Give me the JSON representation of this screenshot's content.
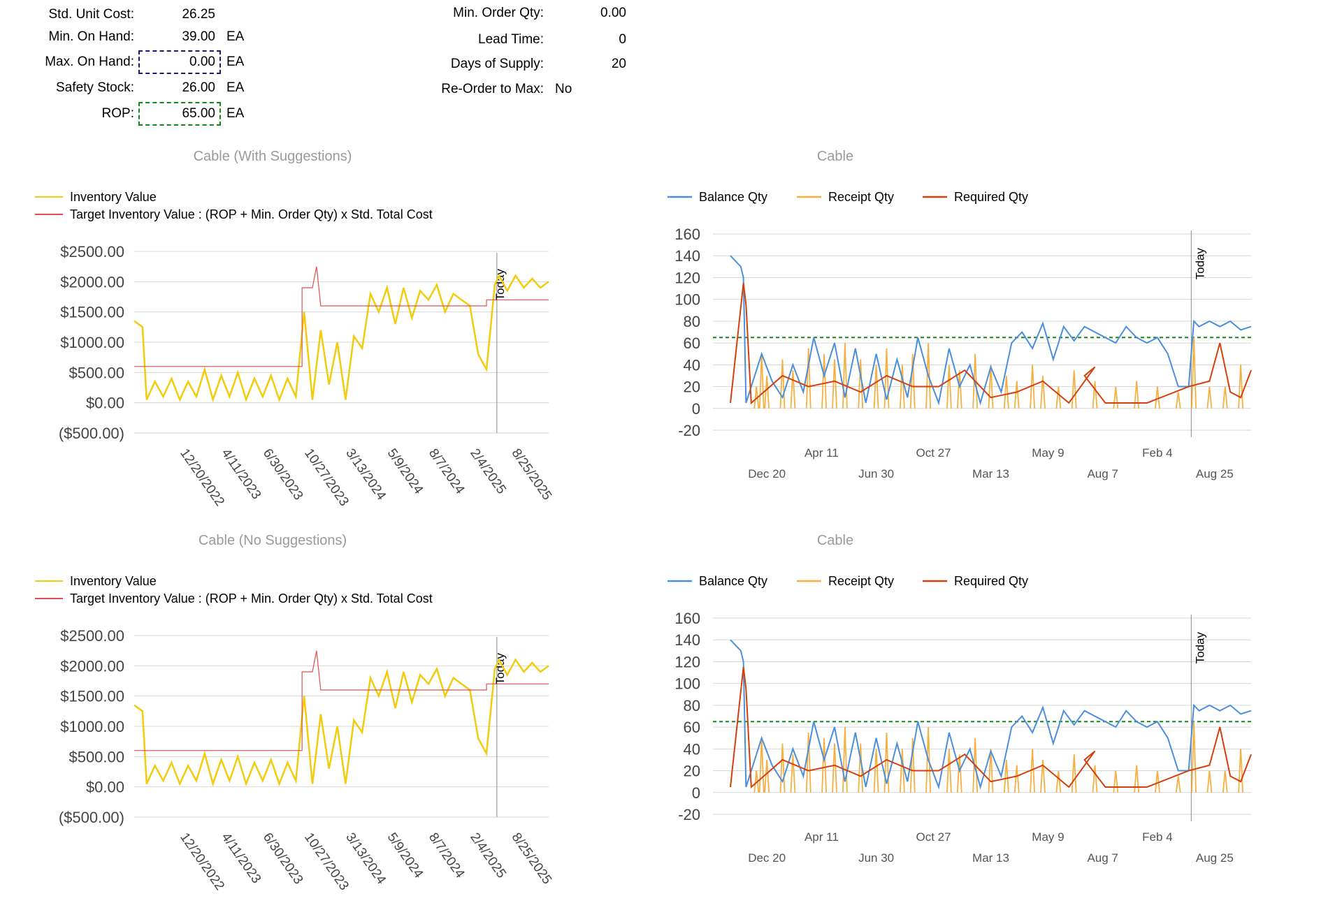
{
  "header": {
    "left": [
      {
        "label": "Std. Unit Cost:",
        "value": "26.25",
        "unit": ""
      },
      {
        "label": "Min. On Hand:",
        "value": "39.00",
        "unit": "EA"
      },
      {
        "label": "Max. On Hand:",
        "value": "0.00",
        "unit": "EA"
      },
      {
        "label": "Safety Stock:",
        "value": "26.00",
        "unit": "EA"
      },
      {
        "label": "ROP:",
        "value": "65.00",
        "unit": "EA"
      }
    ],
    "right": [
      {
        "label": "Min. Order Qty:",
        "value": "0.00"
      },
      {
        "label": "Lead Time:",
        "value": "0"
      },
      {
        "label": "Days of Supply:",
        "value": "20"
      },
      {
        "label": "Re-Order to Max:",
        "value": "No"
      }
    ],
    "colors": {
      "max_box": "#1a1a6e",
      "rop_box": "#138a13"
    }
  },
  "chart_data": [
    {
      "type": "line",
      "title": "Cable (With Suggestions)",
      "title_display": "Cable (With Suggestions)",
      "legend_placement": "top-left",
      "ylim": [
        -500,
        2500
      ],
      "y_ticks": [
        "$2500.00",
        "$2000.00",
        "$1500.00",
        "$1000.00",
        "$500.00",
        "$0.00",
        "($500.00)"
      ],
      "y_tick_values": [
        2500,
        2000,
        1500,
        1000,
        500,
        0,
        -500
      ],
      "x_tick_labels": [
        "12/20/2022",
        "4/11/2023",
        "6/30/2023",
        "10/27/2023",
        "3/13/2024",
        "5/9/2024",
        "8/7/2024",
        "2/4/2025",
        "8/25/2025"
      ],
      "x_tick_positions": [
        0.11,
        0.21,
        0.31,
        0.41,
        0.51,
        0.61,
        0.71,
        0.81,
        0.91
      ],
      "today_label": "Today",
      "today_position": 0.875,
      "series": [
        {
          "name": "Inventory Value",
          "color": "#f2cc0c",
          "x": [
            0,
            0.02,
            0.03,
            0.05,
            0.07,
            0.09,
            0.11,
            0.13,
            0.15,
            0.17,
            0.19,
            0.21,
            0.23,
            0.25,
            0.27,
            0.29,
            0.31,
            0.33,
            0.35,
            0.37,
            0.39,
            0.41,
            0.43,
            0.45,
            0.47,
            0.49,
            0.51,
            0.53,
            0.55,
            0.57,
            0.59,
            0.61,
            0.63,
            0.65,
            0.67,
            0.69,
            0.71,
            0.73,
            0.75,
            0.77,
            0.79,
            0.81,
            0.83,
            0.85,
            0.87,
            0.88,
            0.9,
            0.92,
            0.94,
            0.96,
            0.98,
            1.0
          ],
          "y": [
            1350,
            1250,
            50,
            350,
            100,
            400,
            50,
            350,
            100,
            550,
            50,
            450,
            100,
            500,
            50,
            400,
            100,
            450,
            50,
            400,
            100,
            1500,
            50,
            1200,
            300,
            1000,
            50,
            1100,
            900,
            1800,
            1500,
            1900,
            1300,
            1900,
            1400,
            1850,
            1700,
            1950,
            1500,
            1800,
            1700,
            1600,
            800,
            550,
            1950,
            2100,
            1850,
            2100,
            1900,
            2050,
            1900,
            2000
          ]
        },
        {
          "name": "Target Inventory Value : (ROP + Min. Order Qty) x Std. Total Cost",
          "color": "#e05050",
          "x": [
            0,
            0.405,
            0.405,
            0.43,
            0.44,
            0.45,
            0.45,
            0.85,
            0.85,
            1.0
          ],
          "y": [
            600,
            600,
            1900,
            1900,
            2250,
            1600,
            1600,
            1600,
            1700,
            1700
          ]
        }
      ],
      "data_x_values": "fraction of plotted date range"
    },
    {
      "type": "line",
      "title": "Cable",
      "legend_placement": "top",
      "ylim": [
        -20,
        160
      ],
      "y_ticks": [
        "160",
        "140",
        "120",
        "100",
        "80",
        "60",
        "40",
        "20",
        "0",
        "-20"
      ],
      "y_tick_values": [
        160,
        140,
        120,
        100,
        80,
        60,
        40,
        20,
        0,
        -20
      ],
      "x_tick_labels_top": [
        "Apr 11",
        "Oct 27",
        "May 9",
        "Feb 4"
      ],
      "x_tick_labels_bottom": [
        "Dec 20",
        "Jun 30",
        "Mar 13",
        "Aug 7",
        "Aug 25"
      ],
      "rop_line_value": 65,
      "rop_line_color": "#138a13",
      "today_label": "Today",
      "today_position": 0.885,
      "series": [
        {
          "name": "Balance Qty",
          "color": "#4a8fdc",
          "x": [
            0,
            0.02,
            0.025,
            0.03,
            0.06,
            0.08,
            0.1,
            0.12,
            0.14,
            0.16,
            0.18,
            0.2,
            0.22,
            0.24,
            0.26,
            0.28,
            0.3,
            0.32,
            0.34,
            0.36,
            0.38,
            0.4,
            0.42,
            0.44,
            0.46,
            0.48,
            0.5,
            0.52,
            0.54,
            0.56,
            0.58,
            0.6,
            0.62,
            0.64,
            0.66,
            0.68,
            0.7,
            0.72,
            0.74,
            0.76,
            0.78,
            0.8,
            0.82,
            0.84,
            0.86,
            0.88,
            0.89,
            0.9,
            0.92,
            0.94,
            0.96,
            0.98,
            1.0
          ],
          "y": [
            140,
            130,
            120,
            5,
            50,
            25,
            10,
            40,
            15,
            65,
            30,
            60,
            10,
            55,
            5,
            50,
            8,
            45,
            10,
            65,
            30,
            5,
            55,
            20,
            40,
            5,
            38,
            15,
            60,
            70,
            55,
            78,
            45,
            75,
            62,
            75,
            70,
            65,
            60,
            75,
            65,
            60,
            65,
            50,
            20,
            20,
            80,
            75,
            80,
            75,
            80,
            72,
            75
          ]
        },
        {
          "name": "Receipt Qty",
          "color": "#f5b041",
          "x": [
            0.05,
            0.06,
            0.07,
            0.1,
            0.12,
            0.15,
            0.18,
            0.2,
            0.22,
            0.25,
            0.28,
            0.3,
            0.33,
            0.35,
            0.38,
            0.42,
            0.44,
            0.47,
            0.5,
            0.53,
            0.55,
            0.58,
            0.6,
            0.63,
            0.66,
            0.7,
            0.74,
            0.78,
            0.82,
            0.86,
            0.89,
            0.92,
            0.95,
            0.98
          ],
          "y": [
            20,
            50,
            30,
            45,
            35,
            55,
            50,
            45,
            60,
            45,
            40,
            55,
            40,
            50,
            60,
            40,
            35,
            50,
            40,
            30,
            25,
            40,
            30,
            20,
            35,
            25,
            20,
            25,
            20,
            15,
            65,
            20,
            20,
            40
          ]
        },
        {
          "name": "Required Qty",
          "color": "#d4400c",
          "x": [
            0,
            0.025,
            0.03,
            0.04,
            0.1,
            0.15,
            0.2,
            0.25,
            0.3,
            0.35,
            0.4,
            0.45,
            0.5,
            0.55,
            0.6,
            0.65,
            0.7,
            0.68,
            0.72,
            0.8,
            0.88,
            0.92,
            0.94,
            0.96,
            0.98,
            1.0
          ],
          "y": [
            5,
            115,
            95,
            5,
            30,
            20,
            25,
            15,
            30,
            20,
            20,
            35,
            10,
            15,
            25,
            5,
            38,
            30,
            5,
            5,
            20,
            25,
            60,
            15,
            10,
            35
          ]
        }
      ]
    },
    {
      "type": "line",
      "title": "Cable (No Suggestions)",
      "legend_placement": "top-left",
      "ylim": [
        -500,
        2500
      ],
      "y_ticks": [
        "$2500.00",
        "$2000.00",
        "$1500.00",
        "$1000.00",
        "$500.00",
        "$0.00",
        "($500.00)"
      ],
      "x_tick_labels": [
        "12/20/2022",
        "4/11/2023",
        "6/30/2023",
        "10/27/2023",
        "3/13/2024",
        "5/9/2024",
        "8/7/2024",
        "2/4/2025",
        "8/25/2025"
      ],
      "today_label": "Today",
      "series": [
        {
          "name": "Inventory Value",
          "color": "#f2cc0c"
        },
        {
          "name": "Target Inventory Value : (ROP + Min. Order Qty) x Std. Total Cost",
          "color": "#e05050"
        }
      ]
    },
    {
      "type": "line",
      "title": "Cable",
      "legend_placement": "top",
      "ylim": [
        -20,
        160
      ],
      "y_ticks": [
        "160",
        "140",
        "120",
        "100",
        "80",
        "60",
        "40",
        "20",
        "0",
        "-20"
      ],
      "x_tick_labels_top": [
        "Apr 11",
        "Oct 27",
        "May 9",
        "Feb 4"
      ],
      "x_tick_labels_bottom": [
        "Dec 20",
        "Jun 30",
        "Mar 13",
        "Aug 7",
        "Aug 25"
      ],
      "today_label": "Today",
      "series": [
        {
          "name": "Balance Qty",
          "color": "#4a8fdc"
        },
        {
          "name": "Receipt Qty",
          "color": "#f5b041"
        },
        {
          "name": "Required Qty",
          "color": "#d4400c"
        }
      ]
    }
  ]
}
